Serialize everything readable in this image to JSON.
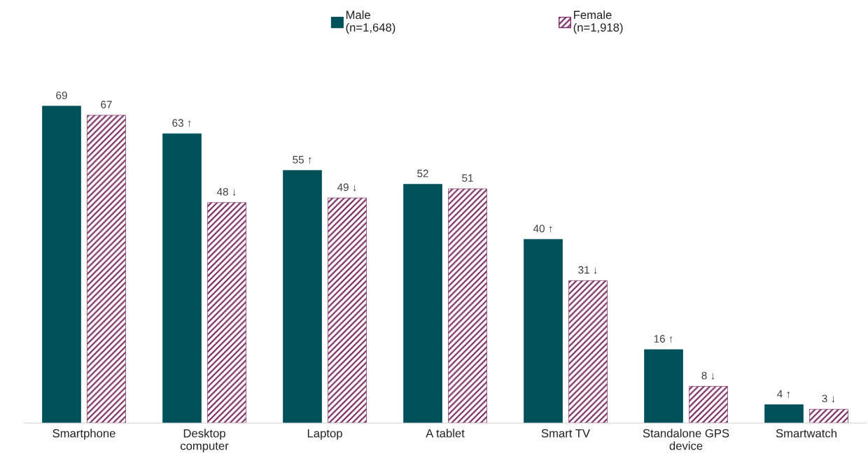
{
  "chart_data": {
    "type": "bar",
    "categories": [
      "Smartphone",
      "Desktop\ncomputer",
      "Laptop",
      "A tablet",
      "Smart TV",
      "Standalone GPS\ndevice",
      "Smartwatch"
    ],
    "series": [
      {
        "name": "Male\n(n=1,648)",
        "color": "#00505a",
        "values": [
          69,
          63,
          55,
          52,
          40,
          16,
          4
        ],
        "value_labels": [
          "69",
          "63 ↑",
          "55 ↑",
          "52",
          "40 ↑",
          "16 ↑",
          "4 ↑"
        ]
      },
      {
        "name": "Female\n(n=1,918)",
        "color": "#7b2d63",
        "values": [
          67,
          48,
          49,
          51,
          31,
          8,
          3
        ],
        "value_labels": [
          "67",
          "48 ↓",
          "49 ↓",
          "51",
          "31 ↓",
          "8 ↓",
          "3 ↓"
        ]
      }
    ],
    "legend": "top",
    "grid": false
  }
}
